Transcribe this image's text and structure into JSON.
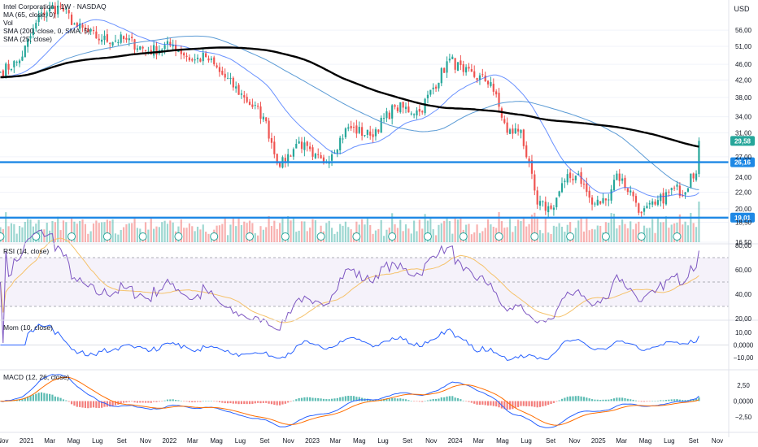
{
  "header": {
    "title": "Intel Corporation · 1W · NASDAQ",
    "currency": "USD",
    "legend": [
      "MA (65, close, 0)",
      "Vol",
      "SMA (200, close, 0, SMA, 5)",
      "SMA (25, close)"
    ]
  },
  "panes": {
    "rsi_title": "RSI (14, close)",
    "mom_title": "Mom (10, close)",
    "macd_title": "MACD (12, 26, close)"
  },
  "colors": {
    "up": "#26a69a",
    "down": "#ef5350",
    "ma65": "#5b9bd5",
    "sma200": "#000000",
    "sma25": "#2962ff",
    "level": "#1e88e5",
    "rsi": "#7e57c2",
    "rsi_ma": "#f5c26b",
    "macd": "#2962ff",
    "signal": "#ff6d00"
  },
  "chart_data": [
    {
      "type": "candlestick",
      "title": "Intel Corporation · 1W · NASDAQ",
      "ylabel": "USD",
      "scale": "log",
      "ylim": [
        16.5,
        66
      ],
      "y_ticks": [
        "56,00",
        "51,00",
        "46,00",
        "42,00",
        "38,00",
        "34,00",
        "31,00",
        "27,00",
        "24,00",
        "22,00",
        "20,00",
        "18,50",
        "16,50"
      ],
      "x_ticks": [
        "Nov",
        "2021",
        "Mar",
        "Mag",
        "Lug",
        "Set",
        "Nov",
        "2022",
        "Mar",
        "Mag",
        "Lug",
        "Set",
        "Nov",
        "2023",
        "Mar",
        "Mag",
        "Lug",
        "Set",
        "Nov",
        "2024",
        "Mar",
        "Mag",
        "Lug",
        "Set",
        "Nov",
        "2025",
        "Mar",
        "Mag",
        "Lug",
        "Set",
        "Nov"
      ],
      "x_range": [
        "2020-10-25",
        "2025-11-30"
      ],
      "anchors": [
        {
          "date": "2020-10-26",
          "close": 44.0
        },
        {
          "date": "2020-12-14",
          "close": 47.0
        },
        {
          "date": "2021-02-08",
          "close": 62.0
        },
        {
          "date": "2021-03-29",
          "close": 64.0
        },
        {
          "date": "2021-05-10",
          "close": 57.0
        },
        {
          "date": "2021-07-12",
          "close": 53.0
        },
        {
          "date": "2021-09-13",
          "close": 53.0
        },
        {
          "date": "2021-11-08",
          "close": 49.5
        },
        {
          "date": "2022-01-10",
          "close": 51.5
        },
        {
          "date": "2022-02-28",
          "close": 47.0
        },
        {
          "date": "2022-04-04",
          "close": 48.0
        },
        {
          "date": "2022-05-09",
          "close": 44.0
        },
        {
          "date": "2022-07-11",
          "close": 38.0
        },
        {
          "date": "2022-08-29",
          "close": 34.0
        },
        {
          "date": "2022-10-10",
          "close": 25.5
        },
        {
          "date": "2022-11-28",
          "close": 29.5
        },
        {
          "date": "2023-01-02",
          "close": 27.0
        },
        {
          "date": "2023-01-30",
          "close": 26.0
        },
        {
          "date": "2023-04-03",
          "close": 32.0
        },
        {
          "date": "2023-05-29",
          "close": 30.5
        },
        {
          "date": "2023-07-31",
          "close": 36.0
        },
        {
          "date": "2023-10-02",
          "close": 35.0
        },
        {
          "date": "2023-12-18",
          "close": 47.5
        },
        {
          "date": "2024-01-22",
          "close": 44.0
        },
        {
          "date": "2024-04-01",
          "close": 41.5
        },
        {
          "date": "2024-05-13",
          "close": 31.0
        },
        {
          "date": "2024-06-17",
          "close": 31.5
        },
        {
          "date": "2024-07-29",
          "close": 20.5
        },
        {
          "date": "2024-09-02",
          "close": 20.0
        },
        {
          "date": "2024-10-07",
          "close": 23.5
        },
        {
          "date": "2024-11-11",
          "close": 24.5
        },
        {
          "date": "2024-12-16",
          "close": 20.5
        },
        {
          "date": "2025-01-20",
          "close": 21.0
        },
        {
          "date": "2025-02-17",
          "close": 24.5
        },
        {
          "date": "2025-03-31",
          "close": 21.5
        },
        {
          "date": "2025-04-21",
          "close": 19.5
        },
        {
          "date": "2025-05-26",
          "close": 20.5
        },
        {
          "date": "2025-07-14",
          "close": 22.5
        },
        {
          "date": "2025-08-11",
          "close": 22.0
        },
        {
          "date": "2025-08-25",
          "close": 24.5
        },
        {
          "date": "2025-09-08",
          "close": 24.5
        },
        {
          "date": "2025-09-15",
          "close": 29.58
        }
      ],
      "series": [
        {
          "name": "MA (65, close, 0)"
        },
        {
          "name": "SMA (200, close, 0, SMA, 5)"
        },
        {
          "name": "SMA (25, close)"
        }
      ],
      "levels": [
        {
          "label": "26,16",
          "value": 26.16
        },
        {
          "label": "19,01",
          "value": 19.01
        }
      ],
      "last_price": {
        "label": "29,58",
        "value": 29.58
      },
      "grid": true
    },
    {
      "type": "line",
      "title": "RSI (14, close)",
      "ylim": [
        20,
        80
      ],
      "y_ticks": [
        "80,00",
        "60,00",
        "40,00",
        "20,00"
      ]
    },
    {
      "type": "line",
      "title": "Mom (10, close)",
      "y_ticks": [
        "10,00",
        "0,0000",
        "−10,00"
      ]
    },
    {
      "type": "bar",
      "title": "MACD (12, 26, close)",
      "y_ticks": [
        "2,50",
        "0,0000",
        "−2,50"
      ]
    }
  ]
}
